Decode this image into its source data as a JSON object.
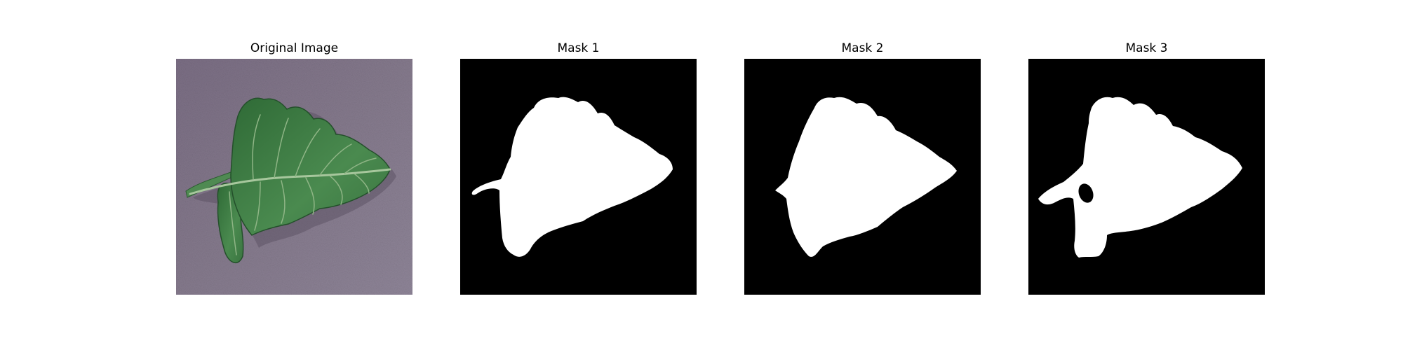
{
  "panels": [
    {
      "title": "Original Image"
    },
    {
      "title": "Mask 1"
    },
    {
      "title": "Mask 2"
    },
    {
      "title": "Mask 3"
    }
  ],
  "colors": {
    "background_surface": "#7d7285",
    "leaf_green": "#3f7a45",
    "leaf_dark": "#244f2b",
    "vein": "#9fbf95",
    "mask_background": "#000000",
    "mask_foreground": "#ffffff"
  }
}
